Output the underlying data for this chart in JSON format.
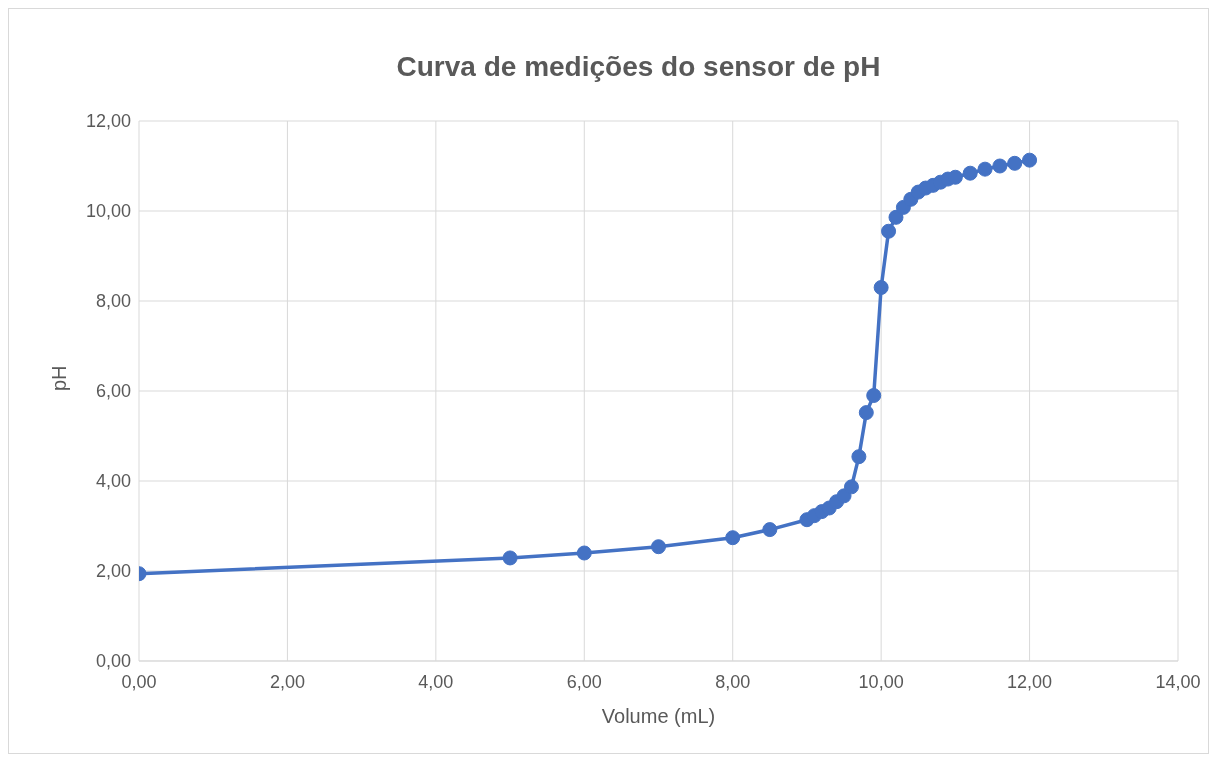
{
  "chart_data": {
    "type": "line",
    "title": "Curva de medições do sensor de pH",
    "xlabel": "Volume (mL)",
    "ylabel": "pH",
    "x": [
      0,
      5,
      6,
      7,
      8,
      8.5,
      9,
      9.1,
      9.2,
      9.3,
      9.4,
      9.5,
      9.6,
      9.7,
      9.8,
      9.9,
      10,
      10.1,
      10.2,
      10.3,
      10.4,
      10.5,
      10.6,
      10.7,
      10.8,
      10.9,
      11,
      11.2,
      11.4,
      11.6,
      11.8,
      12
    ],
    "series": [
      {
        "color": "#4472c4",
        "values": [
          1.94,
          2.29,
          2.4,
          2.54,
          2.74,
          2.92,
          3.14,
          3.23,
          3.32,
          3.4,
          3.54,
          3.67,
          3.87,
          4.54,
          5.52,
          5.9,
          8.3,
          9.55,
          9.86,
          10.08,
          10.26,
          10.42,
          10.51,
          10.57,
          10.64,
          10.71,
          10.75,
          10.84,
          10.93,
          11.0,
          11.06,
          11.13
        ]
      }
    ],
    "xlim": [
      0,
      14
    ],
    "ylim": [
      0,
      12
    ],
    "xticks": [
      {
        "value": 0,
        "label": "0,00"
      },
      {
        "value": 2,
        "label": "2,00"
      },
      {
        "value": 4,
        "label": "4,00"
      },
      {
        "value": 6,
        "label": "6,00"
      },
      {
        "value": 8,
        "label": "8,00"
      },
      {
        "value": 10,
        "label": "10,00"
      },
      {
        "value": 12,
        "label": "12,00"
      },
      {
        "value": 14,
        "label": "14,00"
      }
    ],
    "yticks": [
      {
        "value": 0,
        "label": "0,00"
      },
      {
        "value": 2,
        "label": "2,00"
      },
      {
        "value": 4,
        "label": "4,00"
      },
      {
        "value": 6,
        "label": "6,00"
      },
      {
        "value": 8,
        "label": "8,00"
      },
      {
        "value": 10,
        "label": "10,00"
      },
      {
        "value": 12,
        "label": "12,00"
      }
    ],
    "grid": true,
    "marker": "circle",
    "line_style": "solid",
    "legend": false
  }
}
